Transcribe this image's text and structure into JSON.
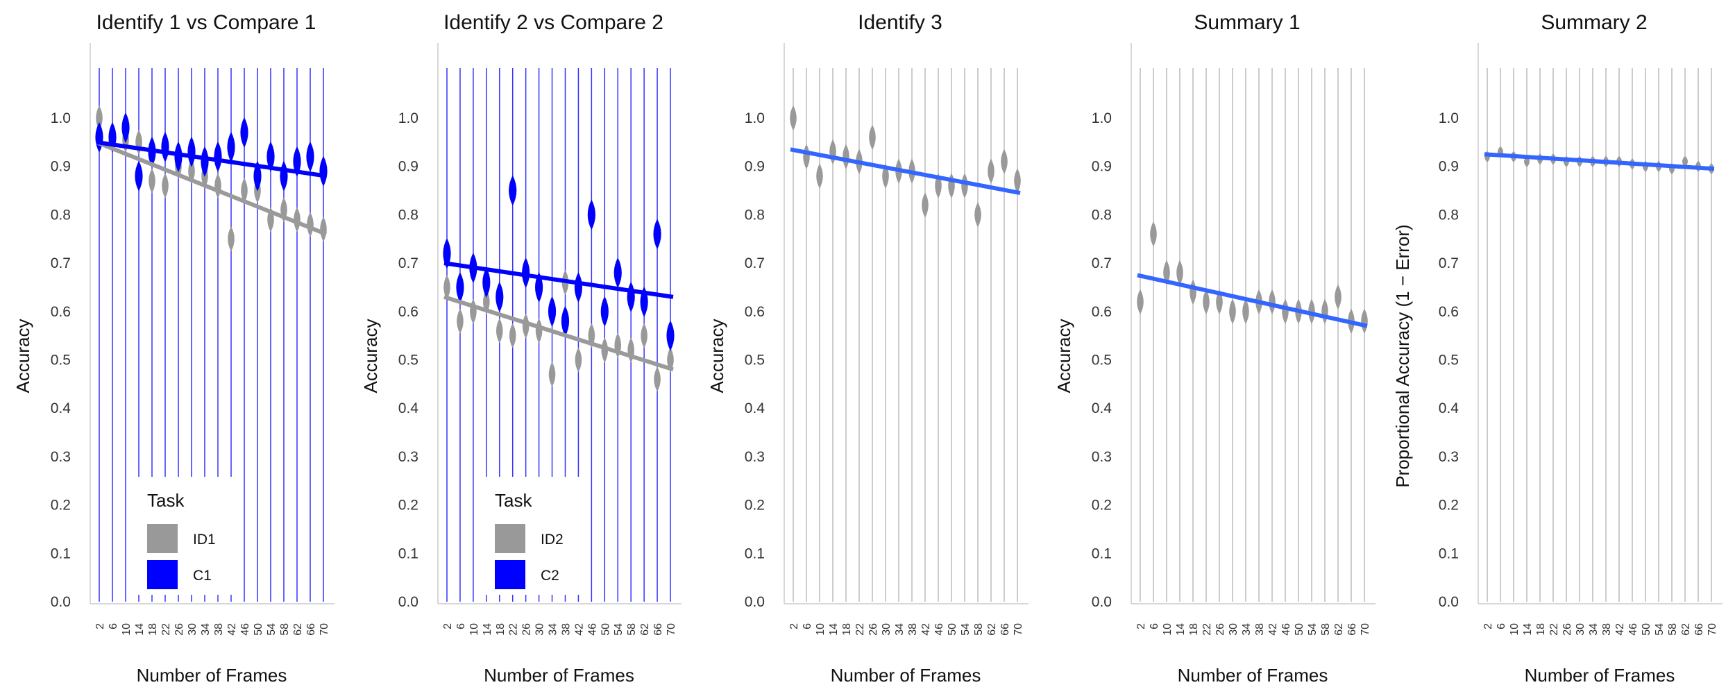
{
  "chart_data": [
    {
      "type": "violin",
      "title": "Identify 1 vs Compare 1",
      "xlabel": "Number of Frames",
      "ylabel": "Accuracy",
      "categories": [
        "2",
        "6",
        "10",
        "14",
        "18",
        "22",
        "26",
        "30",
        "34",
        "38",
        "42",
        "46",
        "50",
        "54",
        "58",
        "62",
        "66",
        "70"
      ],
      "ylim": [
        0,
        1.1
      ],
      "yticks": [
        "0.0",
        "0.1",
        "0.2",
        "0.3",
        "0.4",
        "0.5",
        "0.6",
        "0.7",
        "0.8",
        "0.9",
        "1.0"
      ],
      "grid": false,
      "legend": {
        "title": "Task",
        "placement": "bottom-left",
        "entries": [
          {
            "label": "ID1",
            "color": "#999999"
          },
          {
            "label": "C1",
            "color": "#0000ff"
          }
        ]
      },
      "series": [
        {
          "name": "ID1",
          "color": "#999999",
          "medians": [
            1.0,
            0.96,
            0.955,
            0.95,
            0.87,
            0.86,
            0.9,
            0.89,
            0.88,
            0.86,
            0.75,
            0.85,
            0.85,
            0.79,
            0.81,
            0.79,
            0.78,
            0.77
          ],
          "fit": [
            0.95,
            0.76
          ]
        },
        {
          "name": "C1",
          "color": "#0000ff",
          "medians": [
            0.96,
            0.96,
            0.98,
            0.88,
            0.93,
            0.94,
            0.92,
            0.93,
            0.91,
            0.92,
            0.94,
            0.97,
            0.88,
            0.92,
            0.88,
            0.91,
            0.92,
            0.89
          ],
          "fit": [
            0.95,
            0.88
          ]
        }
      ]
    },
    {
      "type": "violin",
      "title": "Identify 2 vs Compare 2",
      "xlabel": "Number of Frames",
      "ylabel": "Accuracy",
      "categories": [
        "2",
        "6",
        "10",
        "14",
        "18",
        "22",
        "26",
        "30",
        "34",
        "38",
        "42",
        "46",
        "50",
        "54",
        "58",
        "62",
        "66",
        "70"
      ],
      "ylim": [
        0,
        1.1
      ],
      "yticks": [
        "0.0",
        "0.1",
        "0.2",
        "0.3",
        "0.4",
        "0.5",
        "0.6",
        "0.7",
        "0.8",
        "0.9",
        "1.0"
      ],
      "grid": false,
      "legend": {
        "title": "Task",
        "placement": "bottom-left",
        "entries": [
          {
            "label": "ID2",
            "color": "#999999"
          },
          {
            "label": "C2",
            "color": "#0000ff"
          }
        ]
      },
      "series": [
        {
          "name": "ID2",
          "color": "#999999",
          "medians": [
            0.65,
            0.58,
            0.6,
            0.62,
            0.56,
            0.55,
            0.57,
            0.56,
            0.47,
            0.66,
            0.5,
            0.55,
            0.52,
            0.53,
            0.52,
            0.55,
            0.46,
            0.5
          ],
          "fit": [
            0.63,
            0.48
          ]
        },
        {
          "name": "C2",
          "color": "#0000ff",
          "medians": [
            0.72,
            0.65,
            0.69,
            0.66,
            0.63,
            0.85,
            0.68,
            0.65,
            0.6,
            0.58,
            0.65,
            0.8,
            0.6,
            0.68,
            0.63,
            0.62,
            0.76,
            0.55
          ],
          "fit": [
            0.7,
            0.63
          ]
        }
      ]
    },
    {
      "type": "violin",
      "title": "Identify 3",
      "xlabel": "Number of Frames",
      "ylabel": "Accuracy",
      "categories": [
        "2",
        "6",
        "10",
        "14",
        "18",
        "22",
        "26",
        "30",
        "34",
        "38",
        "42",
        "46",
        "50",
        "54",
        "58",
        "62",
        "66",
        "70"
      ],
      "ylim": [
        0,
        1.1
      ],
      "yticks": [
        "0.0",
        "0.1",
        "0.2",
        "0.3",
        "0.4",
        "0.5",
        "0.6",
        "0.7",
        "0.8",
        "0.9",
        "1.0"
      ],
      "grid": false,
      "series": [
        {
          "name": "",
          "color": "#999999",
          "medians": [
            1.0,
            0.92,
            0.88,
            0.93,
            0.92,
            0.91,
            0.96,
            0.88,
            0.89,
            0.89,
            0.82,
            0.86,
            0.86,
            0.86,
            0.8,
            0.89,
            0.91,
            0.87
          ],
          "fit": [
            0.935,
            0.845
          ]
        }
      ],
      "fit_color": "#3366ff"
    },
    {
      "type": "violin",
      "title": "Summary 1",
      "xlabel": "Number of Frames",
      "ylabel": "Accuracy",
      "categories": [
        "2",
        "6",
        "10",
        "14",
        "18",
        "22",
        "26",
        "30",
        "34",
        "38",
        "42",
        "46",
        "50",
        "54",
        "58",
        "62",
        "66",
        "70"
      ],
      "ylim": [
        0,
        1.1
      ],
      "yticks": [
        "0.0",
        "0.1",
        "0.2",
        "0.3",
        "0.4",
        "0.5",
        "0.6",
        "0.7",
        "0.8",
        "0.9",
        "1.0"
      ],
      "grid": false,
      "series": [
        {
          "name": "",
          "color": "#999999",
          "medians": [
            0.62,
            0.76,
            0.68,
            0.68,
            0.64,
            0.62,
            0.62,
            0.6,
            0.6,
            0.62,
            0.62,
            0.6,
            0.6,
            0.6,
            0.6,
            0.63,
            0.58,
            0.58
          ],
          "fit": [
            0.675,
            0.57
          ]
        }
      ],
      "fit_color": "#3366ff"
    },
    {
      "type": "violin",
      "title": "Summary 2",
      "xlabel": "Number of Frames",
      "ylabel": "Proportional Accuracy (1 − Error)",
      "categories": [
        "2",
        "6",
        "10",
        "14",
        "18",
        "22",
        "26",
        "30",
        "34",
        "38",
        "42",
        "46",
        "50",
        "54",
        "58",
        "62",
        "66",
        "70"
      ],
      "ylim": [
        0,
        1.1
      ],
      "yticks": [
        "0.0",
        "0.1",
        "0.2",
        "0.3",
        "0.4",
        "0.5",
        "0.6",
        "0.7",
        "0.8",
        "0.9",
        "1.0"
      ],
      "grid": false,
      "series": [
        {
          "name": "",
          "color": "#999999",
          "medians": [
            0.92,
            0.93,
            0.92,
            0.91,
            0.915,
            0.915,
            0.91,
            0.91,
            0.91,
            0.91,
            0.91,
            0.905,
            0.9,
            0.9,
            0.895,
            0.91,
            0.9,
            0.895
          ],
          "fit": [
            0.925,
            0.895
          ]
        }
      ],
      "fit_color": "#3366ff"
    }
  ]
}
